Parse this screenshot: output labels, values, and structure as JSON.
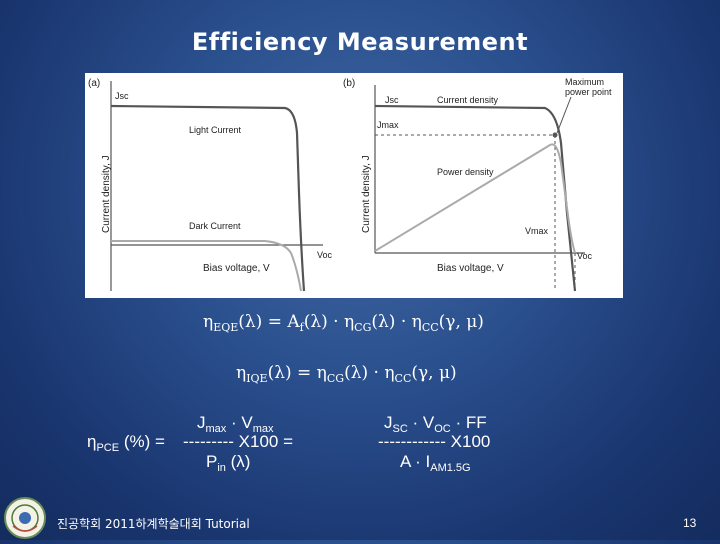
{
  "slide": {
    "title": "Efficiency Measurement",
    "footer": "진공학회 2011하계학술대회 Tutorial",
    "page_number": "13"
  },
  "figure_a": {
    "panel_label": "(a)",
    "y_axis_label": "Current density, J",
    "x_axis_label": "Bias voltage, V",
    "jsc_label": "Jsc",
    "voc_label": "Voc",
    "light_curve_label": "Light Current",
    "dark_curve_label": "Dark Current"
  },
  "figure_b": {
    "panel_label": "(b)",
    "y_axis_label": "Current density, J",
    "x_axis_label": "Bias voltage, V",
    "jsc_label": "Jsc",
    "jmax_label": "Jmax",
    "vmax_label": "Vmax",
    "voc_label": "Voc",
    "current_density_label": "Current density",
    "power_density_label": "Power density",
    "mpp_label_line1": "Maximum",
    "mpp_label_line2": "power point"
  },
  "equations": {
    "eqe": {
      "eta": "η",
      "sub": "EQE",
      "rest_1": "(λ) = A",
      "sub_f": "f",
      "rest_2": "(λ) · η",
      "sub_cg": "CG",
      "rest_3": "(λ) · η",
      "sub_cc": "CC",
      "rest_4": "(γ, μ)"
    },
    "iqe": {
      "eta": "η",
      "sub": "IQE",
      "rest_1": "(λ) = η",
      "sub_cg": "CG",
      "rest_2": "(λ) · η",
      "sub_cc": "CC",
      "rest_3": "(γ, μ)"
    },
    "pce": {
      "lhs_eta": "η",
      "lhs_sub": "PCE",
      "lhs_rest": " (%) = ",
      "num1_j": "J",
      "num1_jsub": "max",
      "num1_dot": " · V",
      "num1_vsub": "max",
      "dashes1": "---------",
      "x100_1": " X100 = ",
      "den1_p": "P",
      "den1_psub": "in",
      "den1_rest": " (λ)",
      "num2_j": "J",
      "num2_jsub": "SC",
      "num2_mid": " · V",
      "num2_vsub": "OC",
      "num2_end": " · FF",
      "dashes2": "------------",
      "x100_2": " X100",
      "den2_a": "A · I",
      "den2_sub": "AM1.5G"
    }
  }
}
